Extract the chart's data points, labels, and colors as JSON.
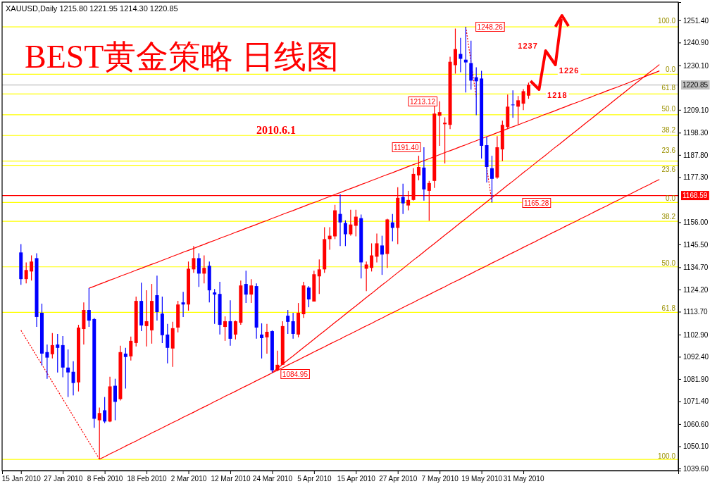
{
  "chart_data": {
    "type": "candlestick",
    "title": "BEST黄金策略  日线图",
    "subtitle": "XAUUSD,Daily  1215.80 1221.95 1214.30 1220.85",
    "categories": [
      "15 Jan 2010",
      null,
      null,
      null,
      null,
      null,
      null,
      null,
      "27 Jan 2010",
      null,
      null,
      null,
      null,
      null,
      null,
      null,
      "8 Feb 2010",
      null,
      null,
      null,
      null,
      null,
      null,
      null,
      "18 Feb 2010",
      null,
      null,
      null,
      null,
      null,
      null,
      null,
      "2 Mar 2010",
      null,
      null,
      null,
      null,
      null,
      null,
      null,
      "12 Mar 2010",
      null,
      null,
      null,
      null,
      null,
      null,
      null,
      "24 Mar 2010",
      null,
      null,
      null,
      null,
      null,
      null,
      null,
      "5 Apr 2010",
      null,
      null,
      null,
      null,
      null,
      null,
      null,
      "15 Apr 2010",
      null,
      null,
      null,
      null,
      null,
      null,
      null,
      "27 Apr 2010",
      null,
      null,
      null,
      null,
      null,
      null,
      null,
      "7 May 2010",
      null,
      null,
      null,
      null,
      null,
      null,
      null,
      "19 May 2010",
      null,
      null,
      null,
      null,
      null,
      null,
      null,
      "31 May 2010",
      null,
      null,
      null,
      null,
      null,
      null,
      null,
      null,
      null,
      null,
      null,
      null,
      null,
      null,
      null,
      null,
      null,
      null,
      null,
      null,
      null,
      null,
      null,
      null,
      null,
      null
    ],
    "ohlc": [
      [
        1141.7,
        1145.6,
        1126.4,
        1129.1
      ],
      [
        1129.1,
        1137.0,
        1127.1,
        1133.4
      ],
      [
        1132.7,
        1140.3,
        1128.4,
        1137.4
      ],
      [
        1139.0,
        1141.3,
        1106.5,
        1111.2
      ],
      [
        1113.2,
        1117.5,
        1088.3,
        1093.9
      ],
      [
        1094.6,
        1098.2,
        1082.0,
        1092.0
      ],
      [
        1093.6,
        1103.6,
        1091.6,
        1097.9
      ],
      [
        1098.2,
        1103.2,
        1085.0,
        1096.6
      ],
      [
        1097.9,
        1102.2,
        1082.7,
        1087.3
      ],
      [
        1087.3,
        1095.9,
        1073.4,
        1085.0
      ],
      [
        1085.3,
        1090.3,
        1074.1,
        1080.0
      ],
      [
        1080.3,
        1107.5,
        1076.0,
        1106.2
      ],
      [
        1105.5,
        1118.1,
        1098.2,
        1114.5
      ],
      [
        1114.5,
        1124.8,
        1106.5,
        1109.5
      ],
      [
        1110.2,
        1110.8,
        1058.8,
        1063.1
      ],
      [
        1062.4,
        1068.4,
        1044.0,
        1065.8
      ],
      [
        1067.1,
        1073.4,
        1061.1,
        1061.8
      ],
      [
        1061.8,
        1083.0,
        1061.5,
        1078.4
      ],
      [
        1078.7,
        1082.0,
        1062.4,
        1071.1
      ],
      [
        1072.4,
        1097.6,
        1071.7,
        1094.6
      ],
      [
        1093.9,
        1096.6,
        1077.4,
        1092.3
      ],
      [
        1092.6,
        1101.9,
        1090.6,
        1099.9
      ],
      [
        1098.9,
        1120.8,
        1097.3,
        1118.8
      ],
      [
        1118.8,
        1127.4,
        1104.5,
        1107.2
      ],
      [
        1106.9,
        1123.8,
        1097.3,
        1109.2
      ],
      [
        1104.9,
        1126.8,
        1098.6,
        1118.8
      ],
      [
        1121.5,
        1130.7,
        1109.5,
        1113.5
      ],
      [
        1112.8,
        1120.8,
        1098.9,
        1102.6
      ],
      [
        1102.9,
        1107.9,
        1089.3,
        1096.6
      ],
      [
        1096.3,
        1108.9,
        1087.6,
        1105.9
      ],
      [
        1106.2,
        1118.8,
        1103.9,
        1117.1
      ],
      [
        1118.1,
        1123.1,
        1111.2,
        1117.1
      ],
      [
        1117.1,
        1137.4,
        1114.2,
        1134.0
      ],
      [
        1133.7,
        1144.7,
        1132.1,
        1139.0
      ],
      [
        1139.0,
        1141.3,
        1125.4,
        1131.7
      ],
      [
        1131.7,
        1140.3,
        1127.1,
        1134.4
      ],
      [
        1135.4,
        1137.4,
        1118.1,
        1123.8
      ],
      [
        1122.8,
        1124.4,
        1107.9,
        1121.8
      ],
      [
        1122.1,
        1127.8,
        1102.9,
        1107.5
      ],
      [
        1106.5,
        1111.5,
        1099.9,
        1109.2
      ],
      [
        1109.2,
        1119.1,
        1097.6,
        1100.9
      ],
      [
        1102.9,
        1109.5,
        1100.6,
        1109.2
      ],
      [
        1108.5,
        1128.4,
        1107.5,
        1126.1
      ],
      [
        1126.8,
        1133.1,
        1117.8,
        1121.8
      ],
      [
        1121.8,
        1129.1,
        1117.8,
        1126.1
      ],
      [
        1125.8,
        1127.1,
        1100.9,
        1106.2
      ],
      [
        1102.9,
        1108.2,
        1091.6,
        1101.2
      ],
      [
        1101.6,
        1107.9,
        1093.9,
        1104.2
      ],
      [
        1104.5,
        1104.9,
        1084.95,
        1086.0
      ],
      [
        1086.0,
        1095.3,
        1085.6,
        1088.6
      ],
      [
        1088.6,
        1109.2,
        1088.6,
        1106.9
      ],
      [
        1111.8,
        1114.5,
        1103.2,
        1108.9
      ],
      [
        1109.2,
        1113.2,
        1100.9,
        1103.2
      ],
      [
        1102.9,
        1117.8,
        1101.6,
        1113.2
      ],
      [
        1112.5,
        1127.8,
        1110.8,
        1126.1
      ],
      [
        1125.1,
        1125.8,
        1115.8,
        1119.5
      ],
      [
        1118.5,
        1133.1,
        1118.5,
        1131.4
      ],
      [
        1130.4,
        1138.4,
        1122.1,
        1133.7
      ],
      [
        1133.7,
        1153.6,
        1132.1,
        1148.0
      ],
      [
        1148.0,
        1153.6,
        1143.0,
        1149.6
      ],
      [
        1149.3,
        1164.2,
        1148.0,
        1161.6
      ],
      [
        1159.9,
        1169.2,
        1144.7,
        1155.9
      ],
      [
        1155.6,
        1156.9,
        1144.7,
        1150.3
      ],
      [
        1150.3,
        1161.9,
        1149.6,
        1154.9
      ],
      [
        1154.3,
        1161.9,
        1149.3,
        1158.6
      ],
      [
        1157.9,
        1159.6,
        1129.4,
        1137.0
      ],
      [
        1134.0,
        1137.4,
        1123.4,
        1136.0
      ],
      [
        1134.4,
        1146.0,
        1132.7,
        1140.3
      ],
      [
        1139.7,
        1150.6,
        1137.0,
        1146.0
      ],
      [
        1145.0,
        1149.6,
        1131.1,
        1140.7
      ],
      [
        1141.0,
        1157.6,
        1134.4,
        1157.3
      ],
      [
        1155.9,
        1159.9,
        1147.0,
        1153.3
      ],
      [
        1153.3,
        1172.5,
        1145.6,
        1167.5
      ],
      [
        1167.9,
        1174.2,
        1159.9,
        1164.9
      ],
      [
        1163.9,
        1170.8,
        1161.6,
        1166.5
      ],
      [
        1166.5,
        1181.5,
        1166.2,
        1178.8
      ],
      [
        1178.1,
        1187.4,
        1175.8,
        1182.1
      ],
      [
        1181.8,
        1191.4,
        1166.2,
        1171.5
      ],
      [
        1170.8,
        1175.5,
        1156.6,
        1174.5
      ],
      [
        1175.5,
        1211.3,
        1172.2,
        1207.3
      ],
      [
        1206.3,
        1213.12,
        1192.1,
        1208.0
      ],
      [
        1202.3,
        1205.6,
        1183.8,
        1203.0
      ],
      [
        1202.0,
        1234.2,
        1200.0,
        1231.8
      ],
      [
        1230.2,
        1247.5,
        1226.2,
        1237.8
      ],
      [
        1235.5,
        1243.1,
        1226.9,
        1233.2
      ],
      [
        1232.8,
        1248.26,
        1217.3,
        1231.5
      ],
      [
        1231.2,
        1241.8,
        1218.6,
        1222.9
      ],
      [
        1224.5,
        1229.2,
        1206.6,
        1222.6
      ],
      [
        1223.9,
        1227.5,
        1186.1,
        1192.1
      ],
      [
        1192.4,
        1196.4,
        1174.8,
        1182.1
      ],
      [
        1181.5,
        1187.4,
        1165.28,
        1176.5
      ],
      [
        1177.1,
        1196.7,
        1176.5,
        1191.4
      ],
      [
        1190.4,
        1204.0,
        1184.8,
        1202.0
      ],
      [
        1201.0,
        1216.3,
        1200.0,
        1210.6
      ],
      [
        1211.6,
        1218.3,
        1205.3,
        1211.3
      ],
      [
        1210.6,
        1215.6,
        1202.0,
        1213.6
      ],
      [
        1212.0,
        1218.9,
        1209.0,
        1217.9
      ],
      [
        1215.8,
        1221.95,
        1214.3,
        1220.85
      ],
      null,
      null,
      null,
      null,
      null,
      null,
      null,
      null,
      null,
      null,
      null,
      null,
      null,
      null,
      null,
      null,
      null,
      null,
      null,
      null,
      null,
      null,
      null,
      null,
      null
    ],
    "colors": [
      "#0000ff",
      "#ff0000",
      "#ff0000",
      "#0000ff",
      "#0000ff",
      "#0000ff",
      "#ff0000",
      "#0000ff",
      "#0000ff",
      "#0000ff",
      "#0000ff",
      "#ff0000",
      "#ff0000",
      "#0000ff",
      "#0000ff",
      "#ff0000",
      "#0000ff",
      "#ff0000",
      "#0000ff",
      "#ff0000",
      "#0000ff",
      "#ff0000",
      "#ff0000",
      "#0000ff",
      "#ff0000",
      "#ff0000",
      "#0000ff",
      "#0000ff",
      "#0000ff",
      "#ff0000",
      "#ff0000",
      "#0000ff",
      "#ff0000",
      "#ff0000",
      "#0000ff",
      "#ff0000",
      "#0000ff",
      "#0000ff",
      "#0000ff",
      "#ff0000",
      "#0000ff",
      "#ff0000",
      "#ff0000",
      "#0000ff",
      "#ff0000",
      "#0000ff",
      "#0000ff",
      "#ff0000",
      "#0000ff",
      "#ff0000",
      "#ff0000",
      "#0000ff",
      "#0000ff",
      "#ff0000",
      "#ff0000",
      "#0000ff",
      "#ff0000",
      "#ff0000",
      "#ff0000",
      "#ff0000",
      "#ff0000",
      "#0000ff",
      "#0000ff",
      "#ff0000",
      "#ff0000",
      "#0000ff",
      "#ff0000",
      "#ff0000",
      "#ff0000",
      "#0000ff",
      "#ff0000",
      "#0000ff",
      "#ff0000",
      "#0000ff",
      "#ff0000",
      "#ff0000",
      "#ff0000",
      "#0000ff",
      "#ff0000",
      "#ff0000",
      "#ff0000",
      "#ff0000",
      "#ff0000",
      "#ff0000",
      "#0000ff",
      "#0000ff",
      "#0000ff",
      "#0000ff",
      "#0000ff",
      "#0000ff",
      "#0000ff",
      "#ff0000",
      "#ff0000",
      "#ff0000",
      "#0000ff",
      "#ff0000",
      "#ff0000",
      "#ff0000",
      null,
      null,
      null,
      null,
      null,
      null,
      null,
      null,
      null,
      null,
      null,
      null,
      null,
      null,
      null,
      null,
      null,
      null,
      null,
      null,
      null,
      null,
      null,
      null,
      null
    ],
    "ylim": [
      1038.6,
      1260.0
    ],
    "yticks": [
      {
        "value": 1251.4,
        "label": "1251.40"
      },
      {
        "value": 1240.9,
        "label": "1240.90"
      },
      {
        "value": 1230.1,
        "label": "1230.10"
      },
      {
        "value": 1209.1,
        "label": "1209.10"
      },
      {
        "value": 1198.3,
        "label": "1198.30"
      },
      {
        "value": 1187.8,
        "label": "1187.80"
      },
      {
        "value": 1177.3,
        "label": "1177.30"
      },
      {
        "value": 1156,
        "label": "1156.00"
      },
      {
        "value": 1145.5,
        "label": "1145.50"
      },
      {
        "value": 1134.7,
        "label": "1134.70"
      },
      {
        "value": 1124.2,
        "label": "1124.20"
      },
      {
        "value": 1113.7,
        "label": "1113.70"
      },
      {
        "value": 1102.9,
        "label": "1102.90"
      },
      {
        "value": 1092.4,
        "label": "1092.40"
      },
      {
        "value": 1081.9,
        "label": "1081.90"
      },
      {
        "value": 1071.4,
        "label": "1071.40"
      },
      {
        "value": 1060.6,
        "label": "1060.60"
      },
      {
        "value": 1050.1,
        "label": "1050.10"
      },
      {
        "value": 1039.6,
        "label": "1039.60"
      }
    ],
    "ref_lines": [
      {
        "axis": "y",
        "value": 1225.9,
        "color": "#ffff00"
      },
      {
        "axis": "y",
        "value": 1182.9,
        "color": "#ffff00"
      },
      {
        "axis": "y",
        "value": 1156.4,
        "color": "#ffff00"
      },
      {
        "axis": "y",
        "value": 1134.9,
        "color": "#ffff00"
      },
      {
        "axis": "y",
        "value": 1113.4,
        "color": "#ffff00"
      },
      {
        "axis": "y",
        "value": 1043.9,
        "color": "#ffff00"
      },
      {
        "axis": "y",
        "value": 1248.3,
        "color": "#ffff00"
      },
      {
        "axis": "y",
        "value": 1216.6,
        "color": "#ffff00"
      },
      {
        "axis": "y",
        "value": 1206.8,
        "color": "#ffff00"
      },
      {
        "axis": "y",
        "value": 1197.0,
        "color": "#ffff00"
      },
      {
        "axis": "y",
        "value": 1184.9,
        "color": "#ffff00"
      },
      {
        "axis": "y",
        "value": 1165.3,
        "color": "#ffff00"
      },
      {
        "axis": "y",
        "value": 1168.59,
        "label": "1168.59",
        "color": "#ff0000"
      },
      {
        "axis": "y",
        "value": 1220.85,
        "label": "1220.85",
        "color": "#c0c0c0"
      }
    ],
    "series": [
      {
        "type": "line",
        "color": "#ff0000",
        "values": [
          null,
          null,
          null,
          null,
          null,
          null,
          null,
          null,
          null,
          null,
          null,
          null,
          null,
          1124.8,
          1125.7,
          1126.7,
          1127.6,
          1128.6,
          1129.5,
          1130.5,
          1131.4,
          1132.3,
          1133.3,
          1134.2,
          1135.2,
          1136.1,
          1137.0,
          1138.0,
          1138.9,
          1139.9,
          1140.8,
          1141.8,
          1142.7,
          1143.6,
          1144.6,
          1145.5,
          1146.5,
          1147.4,
          1148.4,
          1149.3,
          1150.2,
          1151.2,
          1152.1,
          1153.1,
          1154.0,
          1154.9,
          1155.9,
          1156.8,
          1157.8,
          1158.7,
          1159.7,
          1160.6,
          1161.5,
          1162.5,
          1163.4,
          1164.4,
          1165.3,
          1166.2,
          1167.2,
          1168.1,
          1169.1,
          1170.0,
          1171.0,
          1171.9,
          1172.8,
          1173.8,
          1174.7,
          1175.7,
          1176.6,
          1177.6,
          1178.5,
          1179.4,
          1180.4,
          1181.3,
          1182.3,
          1183.2,
          1184.1,
          1185.1,
          1186.0,
          1187.0,
          1187.9,
          1188.9,
          1189.8,
          1190.7,
          1191.7,
          1192.6,
          1193.6,
          1194.5,
          1195.5,
          1196.4,
          1197.3,
          1198.3,
          1199.2,
          1200.2,
          1201.1,
          1202.0,
          1203.0,
          1203.9,
          1204.9,
          1205.8,
          1206.8,
          1207.7,
          1208.6,
          1209.6,
          1210.5,
          1211.5,
          1212.4,
          1213.3,
          1214.3,
          1215.2,
          1216.2,
          1217.1,
          1218.1,
          1219.0,
          1219.9,
          1220.9,
          1221.8,
          1222.8,
          1223.7,
          1224.6,
          1225.6,
          1226.5,
          1227.5
        ]
      },
      {
        "type": "line",
        "color": "#ff0000",
        "values": [
          null,
          null,
          null,
          null,
          null,
          null,
          null,
          null,
          null,
          null,
          null,
          null,
          null,
          null,
          null,
          1044.0,
          1045.2,
          1046.5,
          1047.7,
          1048.9,
          1050.2,
          1051.4,
          1052.6,
          1053.9,
          1055.1,
          1056.4,
          1057.6,
          1058.8,
          1060.1,
          1061.3,
          1062.5,
          1063.8,
          1065.0,
          1066.2,
          1067.5,
          1068.7,
          1069.9,
          1071.2,
          1072.4,
          1073.7,
          1074.9,
          1076.1,
          1077.4,
          1078.6,
          1079.8,
          1081.1,
          1082.3,
          1083.5,
          1084.8,
          1086.0,
          1087.2,
          1088.5,
          1089.7,
          1090.9,
          1092.2,
          1093.4,
          1094.7,
          1095.9,
          1097.1,
          1098.4,
          1099.6,
          1100.8,
          1102.1,
          1103.3,
          1104.5,
          1105.8,
          1107.0,
          1108.2,
          1109.5,
          1110.7,
          1112.0,
          1113.2,
          1114.4,
          1115.7,
          1116.9,
          1118.1,
          1119.4,
          1120.6,
          1121.8,
          1123.1,
          1124.3,
          1125.5,
          1126.8,
          1128.0,
          1129.2,
          1130.5,
          1131.7,
          1133.0,
          1134.2,
          1135.4,
          1136.7,
          1137.9,
          1139.1,
          1140.4,
          1141.6,
          1142.8,
          1144.1,
          1145.3,
          1146.5,
          1147.8,
          1149.0,
          1150.3,
          1151.5,
          1152.7,
          1154.0,
          1155.2,
          1156.4,
          1157.7,
          1158.9,
          1160.1,
          1161.4,
          1162.6,
          1163.8,
          1165.1,
          1166.3,
          1167.5,
          1168.8,
          1170.0,
          1171.3,
          1172.5,
          1173.7,
          1175.0,
          1176.2
        ]
      },
      {
        "type": "line",
        "color": "#ff0000",
        "values": [
          null,
          null,
          null,
          null,
          null,
          null,
          null,
          null,
          null,
          null,
          null,
          null,
          null,
          null,
          null,
          null,
          null,
          null,
          null,
          null,
          null,
          null,
          null,
          null,
          null,
          null,
          null,
          null,
          null,
          null,
          null,
          null,
          null,
          null,
          null,
          null,
          null,
          null,
          null,
          null,
          null,
          null,
          null,
          null,
          null,
          null,
          null,
          null,
          1085.0,
          1086.9,
          1088.9,
          1090.9,
          1092.8,
          1094.8,
          1096.8,
          1098.7,
          1100.7,
          1102.7,
          1104.6,
          1106.6,
          1108.6,
          1110.5,
          1112.5,
          1114.5,
          1116.4,
          1118.4,
          1120.4,
          1122.3,
          1124.3,
          1126.3,
          1128.2,
          1130.2,
          1132.2,
          1134.1,
          1136.1,
          1138.1,
          1140.0,
          1142.0,
          1144.0,
          1145.9,
          1147.9,
          1149.9,
          1151.8,
          1153.8,
          1155.8,
          1157.7,
          1159.7,
          1161.7,
          1163.6,
          1165.6,
          1167.6,
          1169.5,
          1171.5,
          1173.5,
          1175.4,
          1177.4,
          1179.4,
          1181.3,
          1183.3,
          1185.3,
          1187.2,
          1189.2,
          1191.2,
          1193.1,
          1195.1,
          1197.1,
          1199.0,
          1201.0,
          1203.0,
          1204.9,
          1206.9,
          1208.9,
          1210.8,
          1212.8,
          1214.8,
          1216.7,
          1218.7,
          1220.7,
          1222.6,
          1224.6,
          1226.6,
          1228.5,
          1230.5
        ]
      },
      {
        "type": "line",
        "color": "#ff0000",
        "line_style": "dotted",
        "values": [
          1104.9,
          1100.8,
          1096.8,
          1092.7,
          1088.7,
          1084.6,
          1080.5,
          1076.5,
          1072.4,
          1068.4,
          1064.3,
          1060.2,
          1056.2,
          1052.1,
          1048.1,
          1044.0,
          null,
          null,
          null,
          null,
          null,
          null,
          null,
          null,
          null,
          null,
          null,
          null,
          null,
          null,
          null,
          null,
          null,
          null,
          null,
          null,
          null,
          null,
          null,
          null,
          null,
          null,
          null,
          null,
          null,
          null,
          null,
          null,
          null,
          null,
          null,
          null,
          null,
          null,
          null,
          null,
          null,
          null,
          null,
          null,
          null,
          null,
          null,
          null,
          null,
          null,
          null,
          null,
          null,
          null,
          null,
          null,
          null,
          null,
          null,
          null,
          null,
          null,
          null,
          null,
          null,
          null,
          null,
          null,
          null,
          null,
          null,
          null,
          null,
          null,
          null,
          null,
          null,
          null,
          null,
          null,
          null,
          null,
          null,
          null,
          null,
          null,
          null,
          null,
          null,
          null,
          null,
          null,
          null,
          null,
          null,
          null,
          null,
          null,
          null,
          null,
          null,
          null,
          null,
          null,
          null,
          null,
          null
        ]
      },
      {
        "type": "line",
        "color": "#ff0000",
        "line_style": "dotted",
        "values": [
          null,
          null,
          null,
          null,
          null,
          null,
          null,
          null,
          null,
          null,
          null,
          null,
          null,
          null,
          null,
          null,
          null,
          null,
          null,
          null,
          null,
          null,
          null,
          null,
          null,
          null,
          null,
          null,
          null,
          null,
          null,
          null,
          null,
          null,
          null,
          null,
          null,
          null,
          null,
          null,
          null,
          null,
          null,
          null,
          null,
          null,
          null,
          null,
          null,
          null,
          null,
          null,
          null,
          null,
          null,
          null,
          null,
          null,
          null,
          null,
          null,
          null,
          null,
          null,
          null,
          null,
          null,
          null,
          null,
          null,
          null,
          null,
          null,
          null,
          null,
          null,
          null,
          null,
          null,
          null,
          null,
          null,
          null,
          null,
          null,
          1248.3,
          1231.7,
          1215.1,
          null,
          1181.9,
          1165.3,
          null,
          null,
          null,
          null,
          null,
          null,
          null,
          null,
          null,
          null,
          null,
          null,
          null,
          null,
          null,
          null,
          null,
          null,
          null,
          null,
          null,
          null,
          null,
          null,
          null,
          null,
          null,
          null,
          null,
          null,
          null,
          null
        ]
      }
    ],
    "annotations": [
      "2010.6.1",
      "1248.26",
      "1213.12",
      "1191.40",
      "1084.95",
      "1165.28",
      "1237",
      "1226",
      "1218",
      "100.0",
      "0.0",
      "61.8",
      "50.0",
      "38.2",
      "23.6",
      "23.6",
      "0.0",
      "38.2",
      "50.0",
      "61.8",
      "100.0"
    ]
  }
}
